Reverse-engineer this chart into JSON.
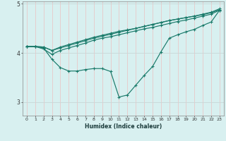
{
  "title": "",
  "xlabel": "Humidex (Indice chaleur)",
  "background_color": "#d8f0f0",
  "grid_color_v": "#e8c8c8",
  "grid_color_h": "#c8d8d8",
  "line_color": "#1a7a6a",
  "x_values": [
    0,
    1,
    2,
    3,
    4,
    5,
    6,
    7,
    8,
    9,
    10,
    11,
    12,
    13,
    14,
    15,
    16,
    17,
    18,
    19,
    20,
    21,
    22,
    23
  ],
  "line1_y": [
    4.13,
    4.13,
    4.12,
    4.05,
    4.1,
    4.15,
    4.2,
    4.25,
    4.3,
    4.34,
    4.38,
    4.42,
    4.46,
    4.5,
    4.54,
    4.58,
    4.62,
    4.66,
    4.69,
    4.72,
    4.75,
    4.78,
    4.82,
    4.88
  ],
  "line2_y": [
    4.13,
    4.13,
    4.12,
    4.05,
    4.12,
    4.17,
    4.22,
    4.27,
    4.32,
    4.36,
    4.4,
    4.44,
    4.47,
    4.5,
    4.54,
    4.58,
    4.62,
    4.66,
    4.69,
    4.72,
    4.75,
    4.79,
    4.83,
    4.9
  ],
  "line3_y": [
    4.13,
    4.13,
    4.1,
    3.87,
    3.7,
    3.63,
    3.63,
    3.66,
    3.68,
    3.68,
    3.62,
    3.1,
    3.14,
    3.34,
    3.54,
    3.72,
    4.02,
    4.3,
    4.37,
    4.43,
    4.48,
    4.56,
    4.63,
    4.87
  ],
  "line4_y": [
    4.13,
    4.13,
    4.08,
    3.97,
    4.05,
    4.1,
    4.15,
    4.2,
    4.26,
    4.3,
    4.33,
    4.37,
    4.41,
    4.45,
    4.49,
    4.52,
    4.56,
    4.6,
    4.64,
    4.67,
    4.71,
    4.75,
    4.79,
    4.87
  ],
  "ylim": [
    2.72,
    5.05
  ],
  "xlim": [
    -0.5,
    23.5
  ],
  "yticks": [
    3,
    4,
    5
  ],
  "xticks": [
    0,
    1,
    2,
    3,
    4,
    5,
    6,
    7,
    8,
    9,
    10,
    11,
    12,
    13,
    14,
    15,
    16,
    17,
    18,
    19,
    20,
    21,
    22,
    23
  ]
}
